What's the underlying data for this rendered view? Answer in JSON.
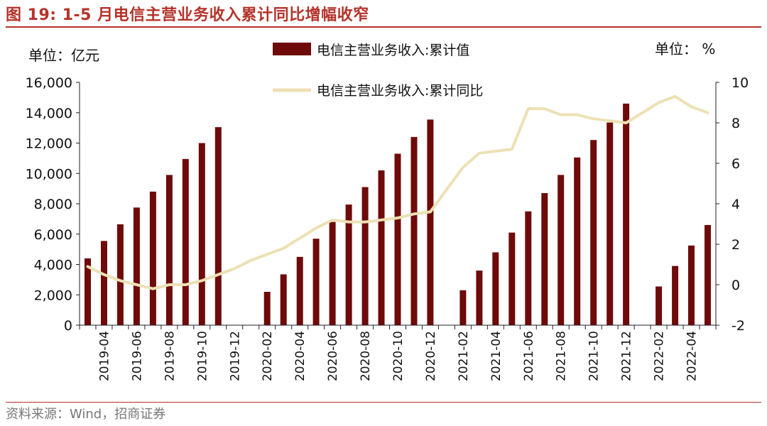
{
  "figure": {
    "title": "图 19:  1-5 月电信主营业务收入累计同比增幅收窄",
    "source": "资料来源：Wind，招商证券"
  },
  "colors": {
    "title": "#b5332a",
    "bar": "#6e0a0a",
    "line": "#ede0b4",
    "right_axis": "#e02020",
    "axis": "#222222"
  },
  "chart_data": {
    "type": "bar+line",
    "left_unit": "单位：亿元",
    "right_unit": "单位：  %",
    "left_ticks": [
      "0",
      "2,000",
      "4,000",
      "6,000",
      "8,000",
      "10,000",
      "12,000",
      "14,000",
      "16,000"
    ],
    "right_ticks": [
      "-2",
      "0",
      "2",
      "4",
      "6",
      "8",
      "10"
    ],
    "left_ylim": [
      0,
      16000
    ],
    "right_ylim": [
      -2,
      10
    ],
    "x": [
      "2019-03",
      "2019-04",
      "2019-05",
      "2019-06",
      "2019-07",
      "2019-08",
      "2019-09",
      "2019-10",
      "2019-11",
      "2019-12",
      "2020-01",
      "2020-02",
      "2020-03",
      "2020-04",
      "2020-05",
      "2020-06",
      "2020-07",
      "2020-08",
      "2020-09",
      "2020-10",
      "2020-11",
      "2020-12",
      "2021-01",
      "2021-02",
      "2021-03",
      "2021-04",
      "2021-05",
      "2021-06",
      "2021-07",
      "2021-08",
      "2021-09",
      "2021-10",
      "2021-11",
      "2021-12",
      "2022-01",
      "2022-02",
      "2022-03",
      "2022-04",
      "2022-05"
    ],
    "x_tick_labels": [
      "2019-04",
      "2019-06",
      "2019-08",
      "2019-10",
      "2019-12",
      "2020-02",
      "2020-04",
      "2020-06",
      "2020-08",
      "2020-10",
      "2020-12",
      "2021-02",
      "2021-04",
      "2021-06",
      "2021-08",
      "2021-10",
      "2021-12",
      "2022-02",
      "2022-04"
    ],
    "series": [
      {
        "name": "电信主营业务收入:累计值",
        "kind": "bar",
        "axis": "left",
        "values": [
          4400,
          5550,
          6650,
          7750,
          8800,
          9900,
          10950,
          12000,
          13050,
          null,
          null,
          2200,
          3350,
          4500,
          5700,
          6800,
          7950,
          9100,
          10200,
          11300,
          12400,
          13550,
          null,
          2300,
          3600,
          4800,
          6100,
          7500,
          8700,
          9900,
          11050,
          12200,
          13350,
          14600,
          null,
          2550,
          3900,
          5250,
          6600
        ]
      },
      {
        "name": "电信主营业务收入:累计同比",
        "kind": "line",
        "axis": "right",
        "values": [
          0.9,
          0.5,
          0.2,
          0.0,
          -0.2,
          0.0,
          0.0,
          0.2,
          0.5,
          0.8,
          1.2,
          1.5,
          1.8,
          2.3,
          2.8,
          3.2,
          3.1,
          3.1,
          3.2,
          3.3,
          3.5,
          3.6,
          4.7,
          5.8,
          6.5,
          6.6,
          6.7,
          8.7,
          8.7,
          8.4,
          8.4,
          8.2,
          8.1,
          8.0,
          8.5,
          9.0,
          9.3,
          8.8,
          8.5
        ]
      }
    ]
  }
}
